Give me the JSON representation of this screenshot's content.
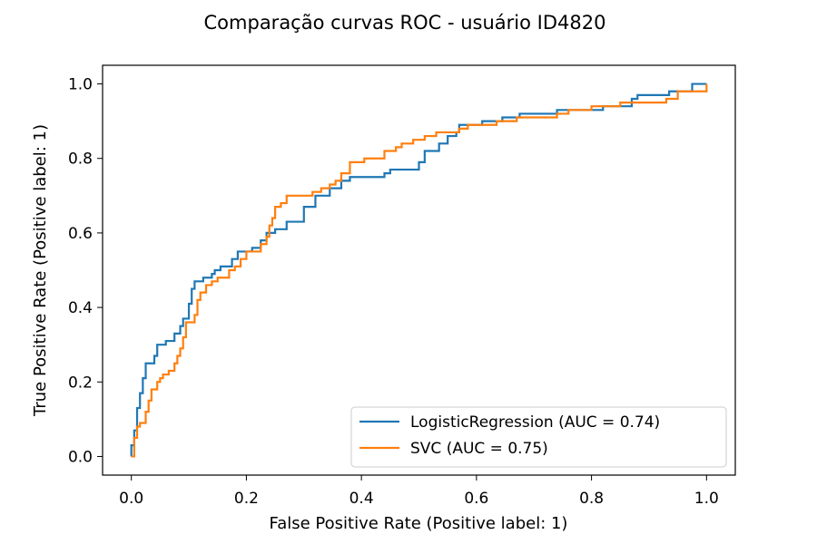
{
  "chart_data": {
    "type": "line",
    "title": "Comparação curvas ROC - usuário ID4820",
    "xlabel": "False Positive Rate (Positive label: 1)",
    "ylabel": "True Positive Rate (Positive label: 1)",
    "xlim": [
      -0.05,
      1.05
    ],
    "ylim": [
      -0.05,
      1.05
    ],
    "xticks": [
      "0.0",
      "0.2",
      "0.4",
      "0.6",
      "0.8",
      "1.0"
    ],
    "yticks": [
      "0.0",
      "0.2",
      "0.4",
      "0.6",
      "0.8",
      "1.0"
    ],
    "grid": false,
    "legend_position": "lower-right",
    "series": [
      {
        "name": "LogisticRegression (AUC = 0.74)",
        "color": "#1f77b4",
        "points": [
          [
            0.0,
            0.0
          ],
          [
            0.0,
            0.03
          ],
          [
            0.005,
            0.03
          ],
          [
            0.005,
            0.07
          ],
          [
            0.01,
            0.07
          ],
          [
            0.01,
            0.13
          ],
          [
            0.015,
            0.13
          ],
          [
            0.015,
            0.17
          ],
          [
            0.02,
            0.17
          ],
          [
            0.02,
            0.21
          ],
          [
            0.025,
            0.21
          ],
          [
            0.025,
            0.25
          ],
          [
            0.04,
            0.25
          ],
          [
            0.04,
            0.27
          ],
          [
            0.045,
            0.27
          ],
          [
            0.045,
            0.3
          ],
          [
            0.06,
            0.3
          ],
          [
            0.06,
            0.31
          ],
          [
            0.075,
            0.31
          ],
          [
            0.075,
            0.33
          ],
          [
            0.085,
            0.33
          ],
          [
            0.085,
            0.35
          ],
          [
            0.09,
            0.35
          ],
          [
            0.09,
            0.37
          ],
          [
            0.1,
            0.37
          ],
          [
            0.1,
            0.41
          ],
          [
            0.105,
            0.41
          ],
          [
            0.105,
            0.45
          ],
          [
            0.11,
            0.45
          ],
          [
            0.11,
            0.47
          ],
          [
            0.125,
            0.47
          ],
          [
            0.125,
            0.48
          ],
          [
            0.14,
            0.48
          ],
          [
            0.14,
            0.49
          ],
          [
            0.145,
            0.49
          ],
          [
            0.145,
            0.5
          ],
          [
            0.155,
            0.5
          ],
          [
            0.155,
            0.51
          ],
          [
            0.175,
            0.51
          ],
          [
            0.175,
            0.53
          ],
          [
            0.185,
            0.53
          ],
          [
            0.185,
            0.55
          ],
          [
            0.21,
            0.55
          ],
          [
            0.21,
            0.56
          ],
          [
            0.225,
            0.56
          ],
          [
            0.225,
            0.58
          ],
          [
            0.235,
            0.58
          ],
          [
            0.235,
            0.6
          ],
          [
            0.25,
            0.6
          ],
          [
            0.25,
            0.61
          ],
          [
            0.27,
            0.61
          ],
          [
            0.27,
            0.63
          ],
          [
            0.3,
            0.63
          ],
          [
            0.3,
            0.67
          ],
          [
            0.32,
            0.67
          ],
          [
            0.32,
            0.7
          ],
          [
            0.345,
            0.7
          ],
          [
            0.345,
            0.72
          ],
          [
            0.365,
            0.72
          ],
          [
            0.365,
            0.74
          ],
          [
            0.38,
            0.74
          ],
          [
            0.38,
            0.75
          ],
          [
            0.44,
            0.75
          ],
          [
            0.44,
            0.76
          ],
          [
            0.45,
            0.76
          ],
          [
            0.45,
            0.77
          ],
          [
            0.5,
            0.77
          ],
          [
            0.5,
            0.79
          ],
          [
            0.51,
            0.79
          ],
          [
            0.51,
            0.82
          ],
          [
            0.535,
            0.82
          ],
          [
            0.535,
            0.84
          ],
          [
            0.55,
            0.84
          ],
          [
            0.55,
            0.86
          ],
          [
            0.565,
            0.86
          ],
          [
            0.565,
            0.87
          ],
          [
            0.57,
            0.87
          ],
          [
            0.57,
            0.89
          ],
          [
            0.61,
            0.89
          ],
          [
            0.61,
            0.9
          ],
          [
            0.645,
            0.9
          ],
          [
            0.645,
            0.91
          ],
          [
            0.675,
            0.91
          ],
          [
            0.675,
            0.92
          ],
          [
            0.74,
            0.92
          ],
          [
            0.74,
            0.93
          ],
          [
            0.82,
            0.93
          ],
          [
            0.82,
            0.94
          ],
          [
            0.87,
            0.94
          ],
          [
            0.87,
            0.96
          ],
          [
            0.88,
            0.96
          ],
          [
            0.88,
            0.97
          ],
          [
            0.935,
            0.97
          ],
          [
            0.935,
            0.98
          ],
          [
            0.975,
            0.98
          ],
          [
            0.975,
            1.0
          ],
          [
            1.0,
            1.0
          ]
        ]
      },
      {
        "name": "SVC (AUC = 0.75)",
        "color": "#ff7f0e",
        "points": [
          [
            0.0,
            0.0
          ],
          [
            0.005,
            0.0
          ],
          [
            0.005,
            0.05
          ],
          [
            0.01,
            0.05
          ],
          [
            0.01,
            0.08
          ],
          [
            0.015,
            0.08
          ],
          [
            0.015,
            0.09
          ],
          [
            0.025,
            0.09
          ],
          [
            0.025,
            0.12
          ],
          [
            0.03,
            0.12
          ],
          [
            0.03,
            0.15
          ],
          [
            0.035,
            0.15
          ],
          [
            0.035,
            0.18
          ],
          [
            0.045,
            0.18
          ],
          [
            0.045,
            0.2
          ],
          [
            0.05,
            0.2
          ],
          [
            0.05,
            0.21
          ],
          [
            0.055,
            0.21
          ],
          [
            0.055,
            0.22
          ],
          [
            0.065,
            0.22
          ],
          [
            0.065,
            0.23
          ],
          [
            0.075,
            0.23
          ],
          [
            0.075,
            0.25
          ],
          [
            0.08,
            0.25
          ],
          [
            0.08,
            0.27
          ],
          [
            0.085,
            0.27
          ],
          [
            0.085,
            0.29
          ],
          [
            0.09,
            0.29
          ],
          [
            0.09,
            0.32
          ],
          [
            0.095,
            0.32
          ],
          [
            0.095,
            0.36
          ],
          [
            0.11,
            0.36
          ],
          [
            0.11,
            0.38
          ],
          [
            0.115,
            0.38
          ],
          [
            0.115,
            0.42
          ],
          [
            0.12,
            0.42
          ],
          [
            0.12,
            0.44
          ],
          [
            0.13,
            0.44
          ],
          [
            0.13,
            0.46
          ],
          [
            0.14,
            0.46
          ],
          [
            0.14,
            0.47
          ],
          [
            0.15,
            0.47
          ],
          [
            0.15,
            0.48
          ],
          [
            0.17,
            0.48
          ],
          [
            0.17,
            0.5
          ],
          [
            0.18,
            0.5
          ],
          [
            0.18,
            0.51
          ],
          [
            0.19,
            0.51
          ],
          [
            0.19,
            0.53
          ],
          [
            0.2,
            0.53
          ],
          [
            0.2,
            0.55
          ],
          [
            0.225,
            0.55
          ],
          [
            0.225,
            0.57
          ],
          [
            0.235,
            0.57
          ],
          [
            0.235,
            0.59
          ],
          [
            0.24,
            0.59
          ],
          [
            0.24,
            0.62
          ],
          [
            0.245,
            0.62
          ],
          [
            0.245,
            0.64
          ],
          [
            0.25,
            0.64
          ],
          [
            0.25,
            0.67
          ],
          [
            0.26,
            0.67
          ],
          [
            0.26,
            0.68
          ],
          [
            0.27,
            0.68
          ],
          [
            0.27,
            0.7
          ],
          [
            0.315,
            0.7
          ],
          [
            0.315,
            0.71
          ],
          [
            0.33,
            0.71
          ],
          [
            0.33,
            0.72
          ],
          [
            0.345,
            0.72
          ],
          [
            0.345,
            0.73
          ],
          [
            0.355,
            0.73
          ],
          [
            0.355,
            0.74
          ],
          [
            0.365,
            0.74
          ],
          [
            0.365,
            0.76
          ],
          [
            0.38,
            0.76
          ],
          [
            0.38,
            0.79
          ],
          [
            0.405,
            0.79
          ],
          [
            0.405,
            0.8
          ],
          [
            0.44,
            0.8
          ],
          [
            0.44,
            0.82
          ],
          [
            0.46,
            0.82
          ],
          [
            0.46,
            0.83
          ],
          [
            0.47,
            0.83
          ],
          [
            0.47,
            0.84
          ],
          [
            0.49,
            0.84
          ],
          [
            0.49,
            0.85
          ],
          [
            0.51,
            0.85
          ],
          [
            0.51,
            0.86
          ],
          [
            0.53,
            0.86
          ],
          [
            0.53,
            0.87
          ],
          [
            0.57,
            0.87
          ],
          [
            0.57,
            0.88
          ],
          [
            0.585,
            0.88
          ],
          [
            0.585,
            0.89
          ],
          [
            0.635,
            0.89
          ],
          [
            0.635,
            0.9
          ],
          [
            0.67,
            0.9
          ],
          [
            0.67,
            0.91
          ],
          [
            0.74,
            0.91
          ],
          [
            0.74,
            0.92
          ],
          [
            0.76,
            0.92
          ],
          [
            0.76,
            0.93
          ],
          [
            0.8,
            0.93
          ],
          [
            0.8,
            0.94
          ],
          [
            0.85,
            0.94
          ],
          [
            0.85,
            0.95
          ],
          [
            0.93,
            0.95
          ],
          [
            0.93,
            0.96
          ],
          [
            0.95,
            0.96
          ],
          [
            0.95,
            0.98
          ],
          [
            1.0,
            0.98
          ],
          [
            1.0,
            1.0
          ]
        ]
      }
    ]
  }
}
